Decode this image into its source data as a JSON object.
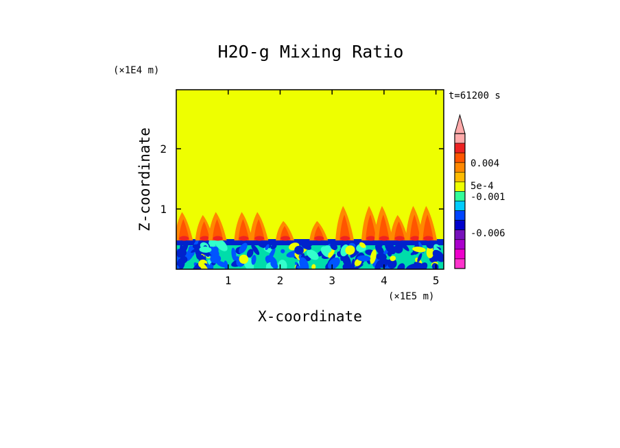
{
  "chart_data": {
    "type": "heatmap",
    "title": "H2O-g Mixing Ratio",
    "xlabel": "X-coordinate",
    "ylabel": "Z-coordinate",
    "x_scale_label": "(×1E5 m)",
    "y_scale_label": "(×1E4 m)",
    "time_label": "t=61200 s",
    "xlim": [
      0,
      5.15
    ],
    "ylim": [
      0,
      2.98
    ],
    "x_ticks": [
      "1",
      "2",
      "3",
      "4",
      "5"
    ],
    "y_ticks": [
      "1",
      "2"
    ],
    "background_level": {
      "region": "z above ~0.6",
      "color": "#eeff00"
    },
    "surface_layer": {
      "z_top": 0.5,
      "colors": [
        "#0022cc",
        "#0055ff",
        "#00ddaa",
        "#33ffcc",
        "#eeff00"
      ]
    },
    "plumes": [
      {
        "x": 0.15,
        "z_top": 0.95
      },
      {
        "x": 0.55,
        "z_top": 0.9
      },
      {
        "x": 0.8,
        "z_top": 0.95
      },
      {
        "x": 1.3,
        "z_top": 0.95
      },
      {
        "x": 1.6,
        "z_top": 0.95
      },
      {
        "x": 2.1,
        "z_top": 0.8
      },
      {
        "x": 2.75,
        "z_top": 0.8
      },
      {
        "x": 3.25,
        "z_top": 1.05
      },
      {
        "x": 3.75,
        "z_top": 1.05
      },
      {
        "x": 4.0,
        "z_top": 1.05
      },
      {
        "x": 4.3,
        "z_top": 0.9
      },
      {
        "x": 4.6,
        "z_top": 1.05
      },
      {
        "x": 4.85,
        "z_top": 1.05
      }
    ],
    "colorbar": {
      "tick_labels": [
        "0.004",
        "5e-4",
        "-0.001",
        "-0.006"
      ],
      "levels_top_to_bottom": [
        "#ffaaaa",
        "#ee2222",
        "#ff5500",
        "#ff8800",
        "#ffbb00",
        "#eeff00",
        "#33ff99",
        "#00ccff",
        "#0044ff",
        "#0000cc",
        "#7711bb",
        "#aa00cc",
        "#ee00cc",
        "#ff33cc"
      ]
    }
  }
}
